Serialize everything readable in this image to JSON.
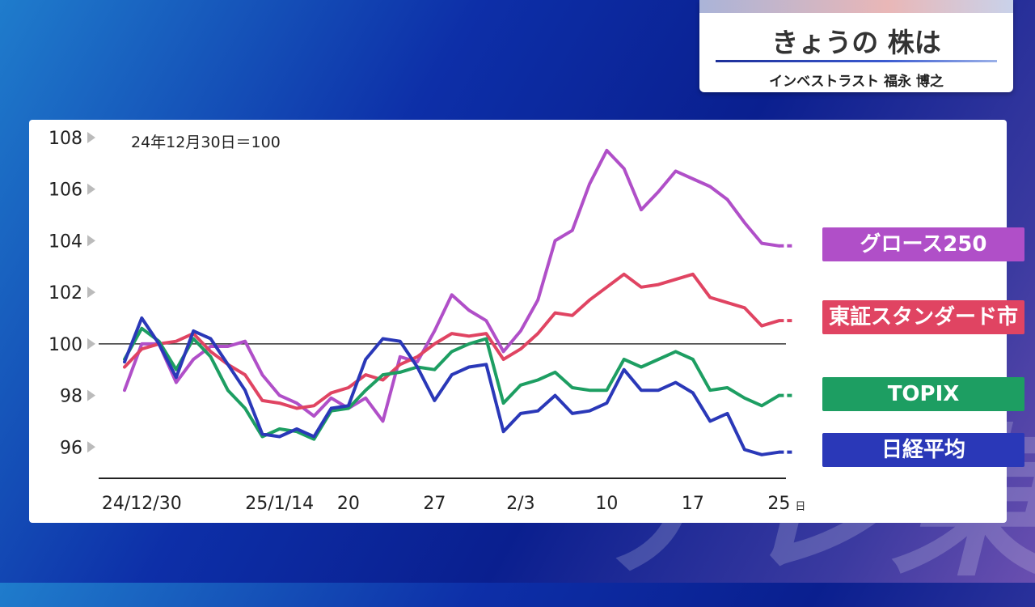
{
  "header": {
    "title": "きょうの 株は",
    "subtitle": "インベストラスト 福永 博之"
  },
  "chart_data": {
    "type": "line",
    "note": "24年12月30日＝100",
    "ylim": [
      95,
      108
    ],
    "y_ticks": [
      "108",
      "106",
      "104",
      "102",
      "100",
      "98",
      "96"
    ],
    "baseline": 100,
    "x_tick_labels": [
      {
        "label": "24/12/30",
        "index": 1
      },
      {
        "label": "25/1/14",
        "index": 9
      },
      {
        "label": "20",
        "index": 13
      },
      {
        "label": "27",
        "index": 18
      },
      {
        "label": "2/3",
        "index": 23
      },
      {
        "label": "10",
        "index": 28
      },
      {
        "label": "17",
        "index": 33
      },
      {
        "label": "25",
        "index": 38
      }
    ],
    "x_unit": "日",
    "series": [
      {
        "name": "グロース250",
        "color": "#b04fc8",
        "values": [
          98.2,
          100.0,
          100.0,
          98.5,
          99.4,
          99.9,
          99.9,
          100.1,
          98.8,
          98.0,
          97.7,
          97.2,
          97.9,
          97.5,
          97.9,
          97.0,
          99.5,
          99.3,
          100.5,
          101.9,
          101.3,
          100.9,
          99.7,
          100.5,
          101.7,
          104.0,
          104.4,
          106.2,
          107.5,
          106.8,
          105.2,
          105.9,
          106.7,
          106.4,
          106.1,
          105.6,
          104.7,
          103.9,
          103.8
        ]
      },
      {
        "name": "東証スタンダード市場",
        "color": "#e04462",
        "values": [
          99.1,
          99.8,
          100.0,
          100.1,
          100.4,
          99.7,
          99.2,
          98.8,
          97.8,
          97.7,
          97.5,
          97.6,
          98.1,
          98.3,
          98.8,
          98.6,
          99.2,
          99.5,
          100.0,
          100.4,
          100.3,
          100.4,
          99.4,
          99.8,
          100.4,
          101.2,
          101.1,
          101.7,
          102.2,
          102.7,
          102.2,
          102.3,
          102.5,
          102.7,
          101.8,
          101.6,
          101.4,
          100.7,
          100.9
        ]
      },
      {
        "name": "TOPIX",
        "color": "#1d9e62",
        "values": [
          99.4,
          100.6,
          100.1,
          99.0,
          100.2,
          99.5,
          98.2,
          97.5,
          96.4,
          96.7,
          96.6,
          96.3,
          97.4,
          97.5,
          98.2,
          98.8,
          98.9,
          99.1,
          99.0,
          99.7,
          100.0,
          100.2,
          97.7,
          98.4,
          98.6,
          98.9,
          98.3,
          98.2,
          98.2,
          99.4,
          99.1,
          99.4,
          99.7,
          99.4,
          98.2,
          98.3,
          97.9,
          97.6,
          98.0
        ]
      },
      {
        "name": "日経平均",
        "color": "#2a38b8",
        "values": [
          99.3,
          101.0,
          100.0,
          98.7,
          100.5,
          100.2,
          99.2,
          98.2,
          96.5,
          96.4,
          96.7,
          96.4,
          97.5,
          97.6,
          99.4,
          100.2,
          100.1,
          99.1,
          97.8,
          98.8,
          99.1,
          99.2,
          96.6,
          97.3,
          97.4,
          98.0,
          97.3,
          97.4,
          97.7,
          99.0,
          98.2,
          98.2,
          98.5,
          98.1,
          97.0,
          97.3,
          95.9,
          95.7,
          95.8
        ]
      }
    ]
  },
  "legend": [
    {
      "label": "グロース250",
      "color": "#b04fc8"
    },
    {
      "label": "東証スタンダード市場",
      "color": "#e04462"
    },
    {
      "label": "TOPIX",
      "color": "#1d9e62"
    },
    {
      "label": "日経平均",
      "color": "#2a38b8"
    }
  ],
  "watermark": "テレ東"
}
